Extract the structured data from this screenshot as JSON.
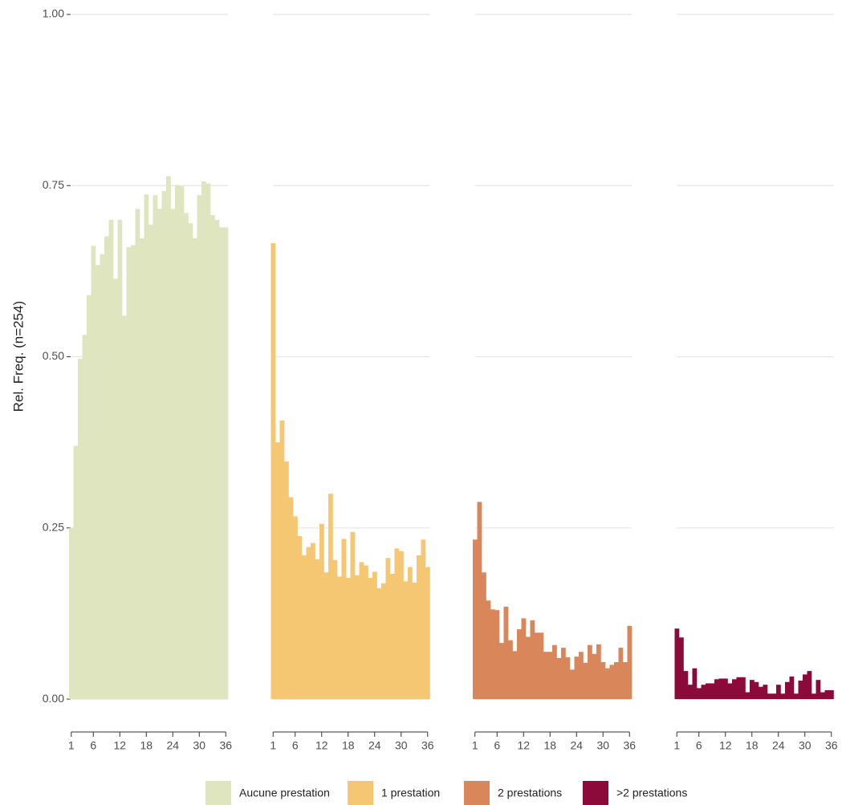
{
  "chart_data": {
    "type": "bar",
    "y_label": "Rel. Freq. (n=254)",
    "x": [
      1,
      2,
      3,
      4,
      5,
      6,
      7,
      8,
      9,
      10,
      11,
      12,
      13,
      14,
      15,
      16,
      17,
      18,
      19,
      20,
      21,
      22,
      23,
      24,
      25,
      26,
      27,
      28,
      29,
      30,
      31,
      32,
      33,
      34,
      35,
      36
    ],
    "xlim": [
      0.5,
      36.5
    ],
    "xticks": [
      1,
      6,
      12,
      18,
      24,
      30,
      36
    ],
    "ylim": [
      -0.048,
      1.0
    ],
    "yticks": [
      {
        "value": 0,
        "label": "0.00"
      },
      {
        "value": 0.25,
        "label": "0.25"
      },
      {
        "value": 0.5,
        "label": "0.50"
      },
      {
        "value": 0.75,
        "label": "0.75"
      },
      {
        "value": 1,
        "label": "1.00"
      }
    ],
    "grid": true,
    "legend": "bottom",
    "series": [
      {
        "name": "Aucune prestation",
        "color": "#dfe5be",
        "values": [
          0.25,
          0.37,
          0.497,
          0.532,
          0.59,
          0.662,
          0.634,
          0.65,
          0.676,
          0.7,
          0.614,
          0.7,
          0.56,
          0.66,
          0.663,
          0.716,
          0.673,
          0.737,
          0.693,
          0.736,
          0.716,
          0.742,
          0.764,
          0.716,
          0.751,
          0.749,
          0.71,
          0.695,
          0.673,
          0.736,
          0.756,
          0.753,
          0.707,
          0.7,
          0.689,
          0.689
        ]
      },
      {
        "name": "1 prestation",
        "color": "#f5c772",
        "values": [
          0.666,
          0.375,
          0.407,
          0.347,
          0.295,
          0.267,
          0.238,
          0.21,
          0.222,
          0.228,
          0.204,
          0.256,
          0.185,
          0.3,
          0.203,
          0.179,
          0.234,
          0.177,
          0.244,
          0.181,
          0.2,
          0.195,
          0.177,
          0.186,
          0.162,
          0.169,
          0.206,
          0.183,
          0.22,
          0.216,
          0.172,
          0.193,
          0.17,
          0.21,
          0.233,
          0.193
        ]
      },
      {
        "name": "2 prestations",
        "color": "#d9865b",
        "values": [
          0.233,
          0.288,
          0.185,
          0.144,
          0.131,
          0.13,
          0.082,
          0.135,
          0.086,
          0.07,
          0.102,
          0.118,
          0.091,
          0.115,
          0.097,
          0.097,
          0.069,
          0.069,
          0.079,
          0.06,
          0.075,
          0.061,
          0.043,
          0.062,
          0.069,
          0.053,
          0.079,
          0.066,
          0.08,
          0.054,
          0.045,
          0.05,
          0.054,
          0.075,
          0.054,
          0.107
        ]
      },
      {
        "name": ">2 prestations",
        "color": "#8c0a3a",
        "values": [
          0.103,
          0.09,
          0.041,
          0.021,
          0.045,
          0.016,
          0.021,
          0.023,
          0.023,
          0.029,
          0.03,
          0.03,
          0.023,
          0.029,
          0.032,
          0.032,
          0.01,
          0.028,
          0.025,
          0.018,
          0.021,
          0.008,
          0.008,
          0.021,
          0.008,
          0.025,
          0.033,
          0.008,
          0.027,
          0.036,
          0.041,
          0.008,
          0.028,
          0.01,
          0.013,
          0.013
        ]
      }
    ]
  }
}
